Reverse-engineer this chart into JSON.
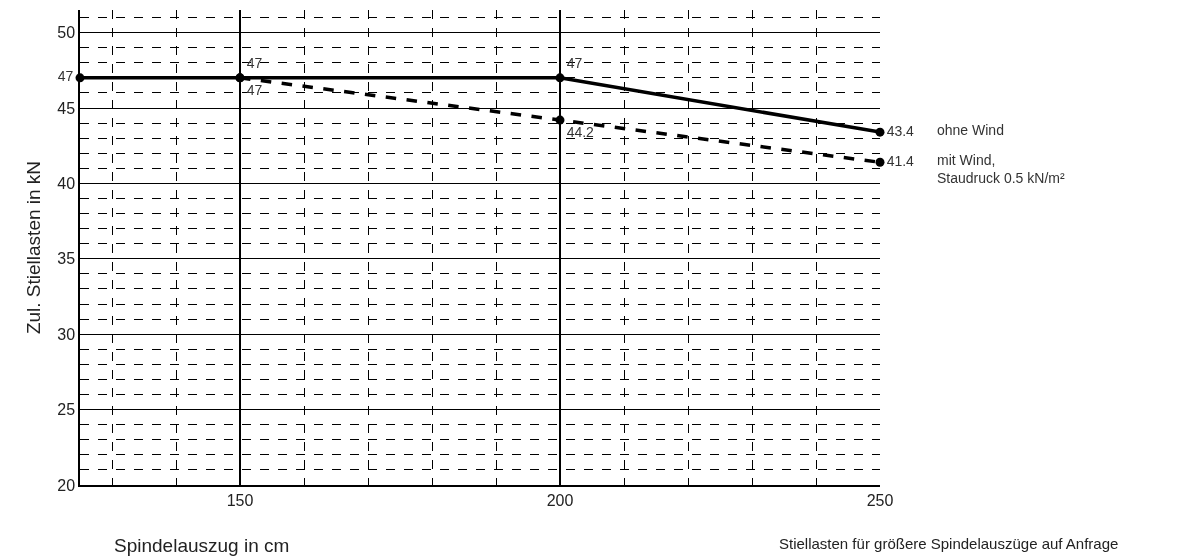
{
  "chart_data": {
    "type": "line",
    "xlabel": "Spindelauszug in cm",
    "ylabel": "Zul. Stiellasten in kN",
    "xlim": [
      125,
      250
    ],
    "xticks": [
      150,
      200,
      250
    ],
    "ylim": [
      20,
      51.5
    ],
    "yticks": [
      20,
      25,
      30,
      35,
      40,
      45,
      50
    ],
    "grid": true,
    "legend": false,
    "marker": "circle",
    "series": [
      {
        "name": "ohne Wind",
        "color": "#000000",
        "line_style": "solid",
        "x": [
          125,
          150,
          200,
          250
        ],
        "values": [
          47,
          47,
          47,
          43.4
        ],
        "value_labels": [
          "47",
          "47",
          "47",
          "43.4"
        ]
      },
      {
        "name": "mit Wind, Staudruck 0.5 kN/m²",
        "color": "#000000",
        "line_style": "dashed",
        "x": [
          150,
          200,
          250
        ],
        "values": [
          47,
          44.2,
          41.4
        ],
        "value_labels": [
          "47",
          "44.2",
          "41.4"
        ]
      }
    ],
    "annotations": [
      "Stiellasten für größere Spindelauszüge auf Anfrage"
    ]
  }
}
